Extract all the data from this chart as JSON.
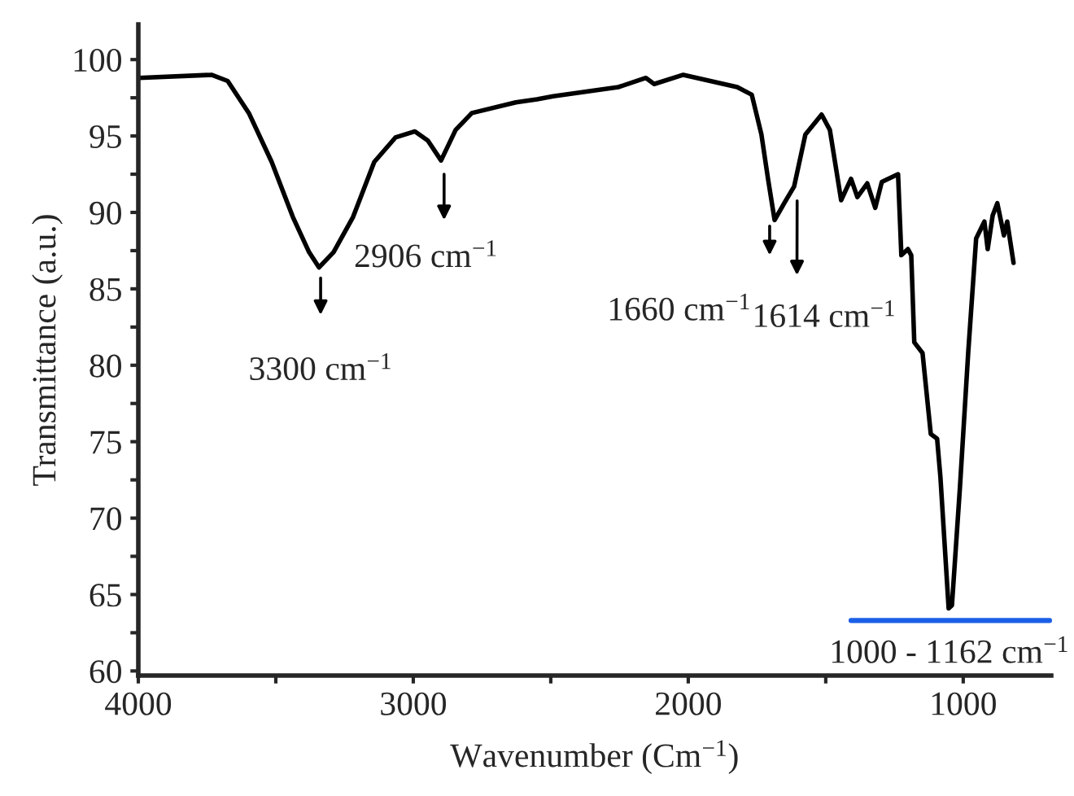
{
  "chart_data": {
    "type": "line",
    "xlabel": "Wavenumber (Cm$^{−1}$)",
    "ylabel": "Transmittance (a.u.)",
    "xlim": [
      4000,
      680
    ],
    "ylim": [
      59.7,
      102.3
    ],
    "xticks": [
      4000,
      {
        "value": 3500,
        "label": null
      },
      3000,
      {
        "value": 2500,
        "label": null
      },
      2000,
      {
        "value": 1500,
        "label": null
      },
      1000
    ],
    "yticks": [
      60,
      {
        "value": 62.5,
        "label": null
      },
      65,
      {
        "value": 67.5,
        "label": null
      },
      70,
      {
        "value": 72.5,
        "label": null
      },
      75,
      {
        "value": 77.5,
        "label": null
      },
      80,
      {
        "value": 82.5,
        "label": null
      },
      85,
      {
        "value": 87.5,
        "label": null
      },
      90,
      {
        "value": 92.5,
        "label": null
      },
      95,
      {
        "value": 97.5,
        "label": null
      },
      100
    ],
    "grid": false,
    "legend": false,
    "marker": "none",
    "line_style": "solid",
    "series": [
      {
        "color": "#000000",
        "x": [
          4000,
          3734,
          3675,
          3598,
          3515,
          3438,
          3379,
          3343,
          3290,
          3219,
          3142,
          3065,
          2994,
          2947,
          2899,
          2846,
          2787,
          2627,
          2550,
          2491,
          2254,
          2154,
          2124,
          2018,
          1822,
          1769,
          1734,
          1710,
          1686,
          1651,
          1615,
          1574,
          1515,
          1485,
          1444,
          1408,
          1385,
          1349,
          1320,
          1296,
          1237,
          1225,
          1201,
          1189,
          1178,
          1148,
          1118,
          1095,
          1083,
          1053,
          1041,
          1012,
          982,
          953,
          923,
          911,
          893,
          876,
          852,
          840,
          817
        ],
        "values": [
          98.8,
          99.0,
          98.6,
          96.5,
          93.3,
          89.7,
          87.4,
          86.4,
          87.4,
          89.7,
          93.3,
          94.9,
          95.3,
          94.7,
          93.4,
          95.4,
          96.5,
          97.2,
          97.4,
          97.6,
          98.2,
          98.8,
          98.4,
          99.0,
          98.2,
          97.7,
          95.1,
          92.2,
          89.5,
          90.6,
          91.7,
          95.1,
          96.4,
          95.4,
          90.8,
          92.2,
          91.0,
          91.9,
          90.3,
          92.0,
          92.5,
          87.2,
          87.6,
          87.2,
          81.5,
          80.8,
          75.5,
          75.2,
          72.7,
          64.1,
          64.3,
          72.0,
          80.8,
          88.3,
          89.4,
          87.6,
          89.8,
          90.6,
          88.5,
          89.4,
          86.7
        ]
      },
      {
        "color": "#1a5fe6",
        "x": [
          1408,
          686
        ],
        "values": [
          63.3,
          63.3
        ]
      }
    ],
    "annotations": [
      {
        "text": "3300 cm$^{−1}$",
        "x": 3337,
        "y": 86.0
      },
      {
        "text": "2906 cm$^{−1}$",
        "x": 2888,
        "y": 92.8
      },
      {
        "text": "1660 cm$^{−1}$",
        "x": 1704,
        "y": 89.4
      },
      {
        "text": "1614 cm$^{−1}$",
        "x": 1604,
        "y": 90.9
      },
      {
        "text": "1000 - 1162 cm$^{−1}$",
        "x": 1050,
        "y": 63.3
      }
    ]
  }
}
